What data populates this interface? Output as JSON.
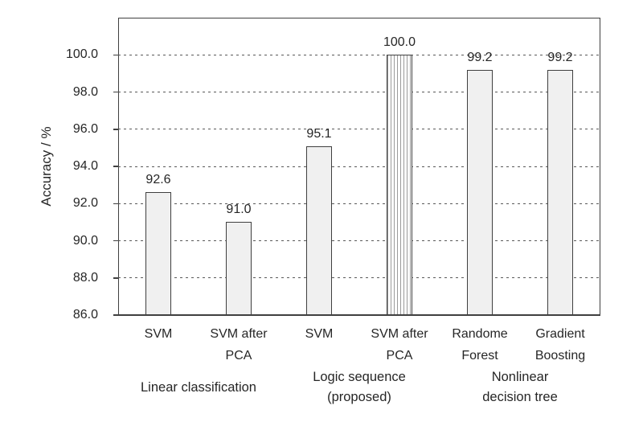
{
  "chart_data": {
    "type": "bar",
    "title": "",
    "ylabel": "Accuracy / %",
    "xlabel": "",
    "ylim": [
      86,
      102
    ],
    "yticks": [
      86,
      88,
      90,
      92,
      94,
      96,
      98,
      100
    ],
    "ytick_labels": [
      "86.0",
      "88.0",
      "90.0",
      "92.0",
      "94.0",
      "96.0",
      "98.0",
      "100.0"
    ],
    "grid": "horizontal-dashed",
    "legend": "none",
    "categories": [
      "SVM",
      "SVM after\nPCA",
      "SVM",
      "SVM after\nPCA",
      "Randome\nForest",
      "Gradient\nBoosting"
    ],
    "values": [
      92.6,
      91.0,
      95.1,
      100.0,
      99.2,
      99.2
    ],
    "value_labels": [
      "92.6",
      "91.0",
      "95.1",
      "100.0",
      "99.2",
      "99.2"
    ],
    "bar_styles": [
      "solid",
      "solid",
      "solid",
      "hatch-vertical",
      "solid",
      "solid"
    ],
    "groups": [
      {
        "label": "Linear classification",
        "bars": [
          0,
          1
        ]
      },
      {
        "label": "Logic sequence\n(proposed)",
        "bars": [
          2,
          3
        ]
      },
      {
        "label": "Nonlinear\ndecision tree",
        "bars": [
          4,
          5
        ]
      }
    ],
    "colors": {
      "background": "#ffffff",
      "bar_fill": "#f0f0f0",
      "bar_border": "#3f3f3f",
      "hatch_line": "#9a9a9a",
      "grid": "#595959",
      "frame": "#404040",
      "text": "#262626"
    }
  }
}
